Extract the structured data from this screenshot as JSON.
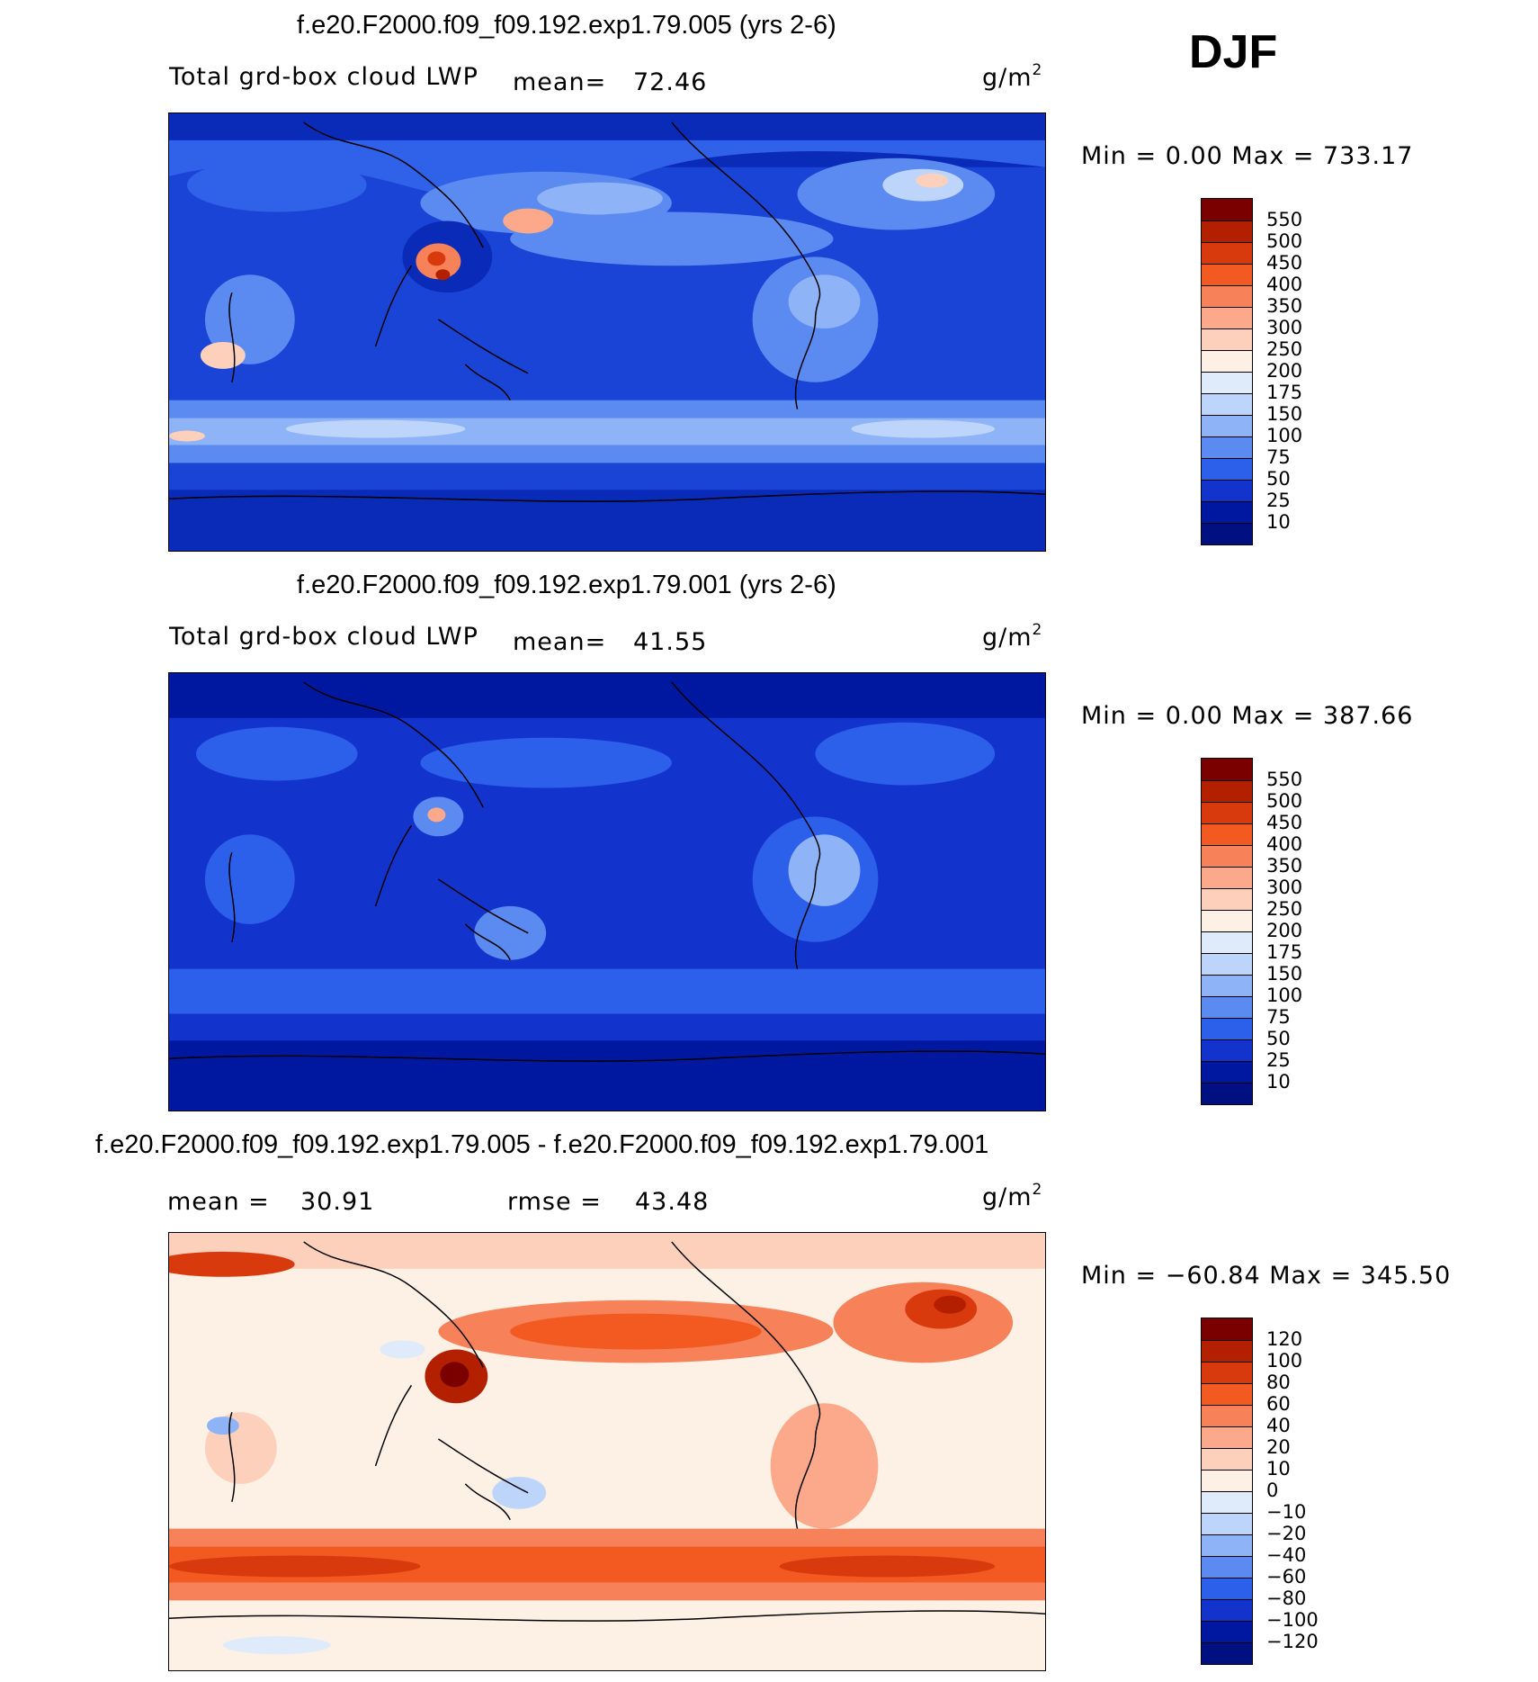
{
  "season": "DJF",
  "units": {
    "text": "g/m",
    "sup": "2"
  },
  "panels": [
    {
      "title": "f.e20.F2000.f09_f09.192.exp1.79.005 (yrs 2-6)",
      "variable": "Total grd-box cloud LWP",
      "mean_label": "mean=",
      "mean_value": "72.46",
      "minmax": "Min =    0.00 Max = 733.17",
      "levels": [
        "550",
        "500",
        "450",
        "400",
        "350",
        "300",
        "250",
        "200",
        "175",
        "150",
        "100",
        "75",
        "50",
        "25",
        "10"
      ]
    },
    {
      "title": "f.e20.F2000.f09_f09.192.exp1.79.001 (yrs 2-6)",
      "variable": "Total grd-box cloud LWP",
      "mean_label": "mean=",
      "mean_value": "41.55",
      "minmax": "Min =    0.00 Max = 387.66",
      "levels": [
        "550",
        "500",
        "450",
        "400",
        "350",
        "300",
        "250",
        "200",
        "175",
        "150",
        "100",
        "75",
        "50",
        "25",
        "10"
      ]
    },
    {
      "title": "f.e20.F2000.f09_f09.192.exp1.79.005 - f.e20.F2000.f09_f09.192.exp1.79.001",
      "mean_label": "mean =",
      "mean_value": "30.91",
      "rmse_label": "rmse =",
      "rmse_value": "43.48",
      "minmax": "Min = −60.84 Max = 345.50",
      "levels": [
        "120",
        "100",
        "80",
        "60",
        "40",
        "20",
        "10",
        "0",
        "−10",
        "−20",
        "−40",
        "−60",
        "−80",
        "−100",
        "−120"
      ]
    }
  ],
  "colors": {
    "abs_scale": [
      "#7a0000",
      "#b32000",
      "#d93a0d",
      "#f25a21",
      "#f78158",
      "#fba98a",
      "#fdd0bc",
      "#fdf0e4",
      "#dfeafb",
      "#bdd4fb",
      "#8eb3f7",
      "#5b8af0",
      "#2c60ea",
      "#1334cc",
      "#0018a0",
      "#001080"
    ],
    "diff_scale": [
      "#7a0000",
      "#b32000",
      "#d93a0d",
      "#f25a21",
      "#f78158",
      "#fba98a",
      "#fdd0bc",
      "#fdf0e4",
      "#dfeafb",
      "#bdd4fb",
      "#8eb3f7",
      "#5b8af0",
      "#2c60ea",
      "#1334cc",
      "#0018a0",
      "#001080"
    ]
  }
}
